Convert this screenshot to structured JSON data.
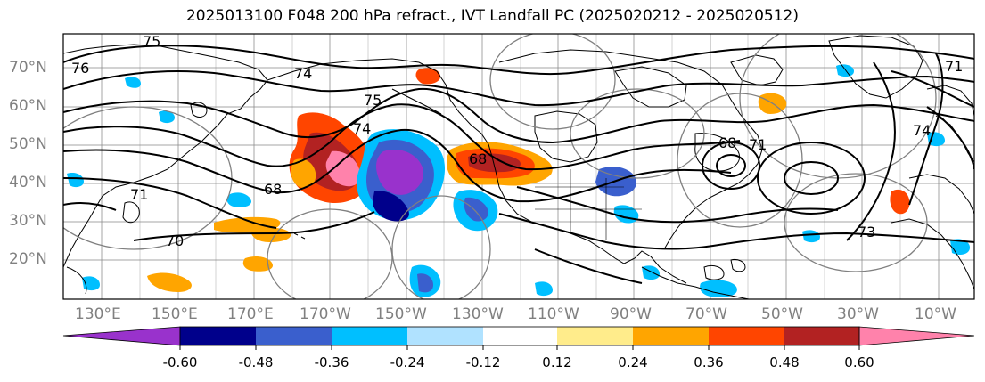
{
  "title": "2025013100 F048 200 hPa refract., IVT Landfall PC (2025020212 - 2025020512)",
  "map": {
    "lat_labels": [
      "70°N",
      "60°N",
      "50°N",
      "40°N",
      "30°N",
      "20°N"
    ],
    "lon_labels": [
      "130°E",
      "150°E",
      "170°E",
      "170°W",
      "150°W",
      "130°W",
      "110°W",
      "90°W",
      "70°W",
      "50°W",
      "30°W",
      "10°W"
    ],
    "contour_labels": [
      "75",
      "74",
      "75",
      "74",
      "76",
      "68",
      "68",
      "70",
      "71",
      "68",
      "73",
      "71",
      "74",
      "71"
    ],
    "colors": {
      "land_outline": "#000000",
      "contour": "#000000",
      "pc_contour": "#808080",
      "grid": "#808080"
    }
  },
  "colorbar": {
    "boundaries": [
      "-0.60",
      "-0.48",
      "-0.36",
      "-0.24",
      "-0.12",
      "0.12",
      "0.24",
      "0.36",
      "0.48",
      "0.60"
    ],
    "colors": [
      "#9932CC",
      "#00008B",
      "#3A5FCD",
      "#00BFFF",
      "#B0E2FF",
      "#FFFFFF",
      "#FFEC8B",
      "#FFA500",
      "#FF4500",
      "#B22222",
      "#FF82AB"
    ]
  }
}
